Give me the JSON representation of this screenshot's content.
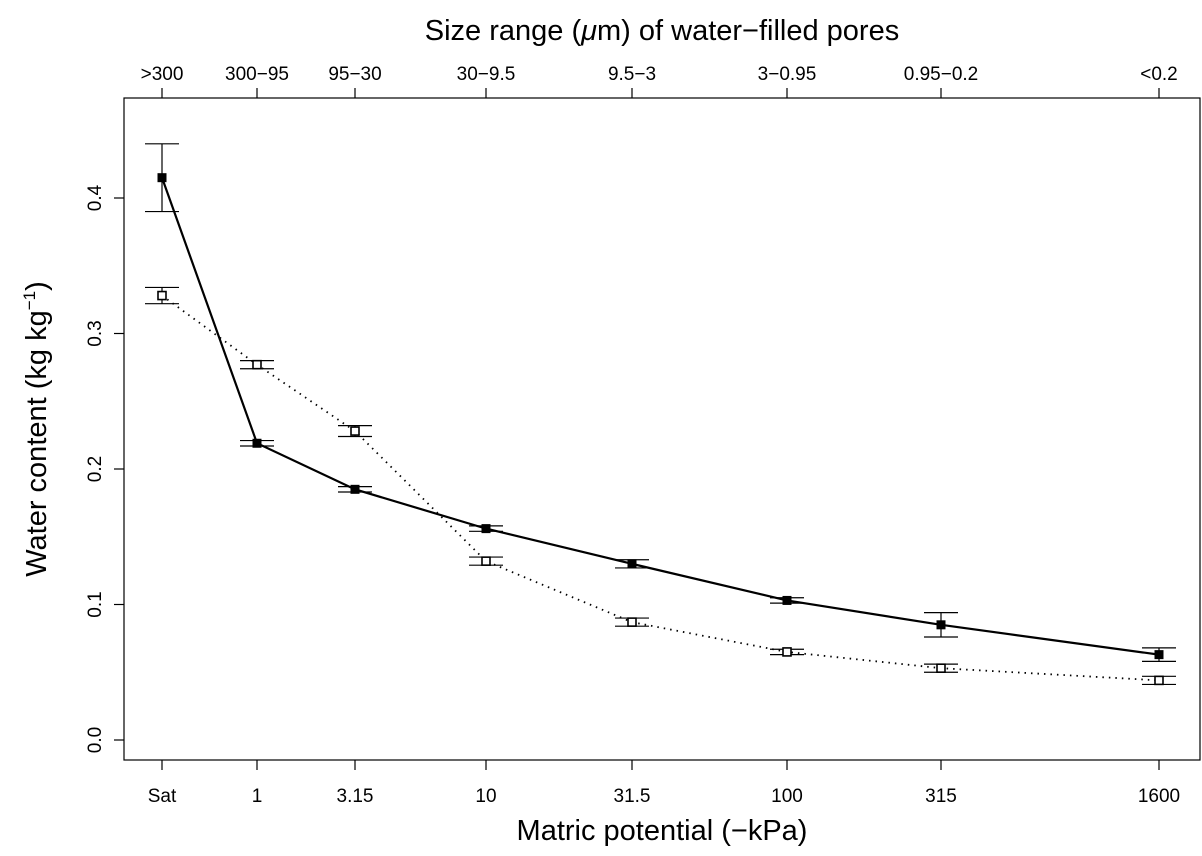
{
  "chart_data": {
    "type": "line",
    "title": "",
    "xlabel": "Matric potential (−kPa)",
    "x2label_parts": {
      "before": "Size range (",
      "mu": "μ",
      "after": "m) of water−filled pores"
    },
    "ylabel_parts": {
      "main": "Water content (kg kg",
      "sup": "−1",
      "close": ")"
    },
    "categories": [
      "Sat",
      "1",
      "3.15",
      "10",
      "31.5",
      "100",
      "315",
      "1600"
    ],
    "top_categories": [
      ">300",
      "300−95",
      "95−30",
      "30−9.5",
      "9.5−3",
      "3−0.95",
      "0.95−0.2",
      "<0.2"
    ],
    "ylim": [
      0,
      0.45
    ],
    "yticks": [
      0.0,
      0.1,
      0.2,
      0.3,
      0.4
    ],
    "ytick_labels": [
      "0.0",
      "0.1",
      "0.2",
      "0.3",
      "0.4"
    ],
    "grid": false,
    "legend": "none",
    "series": [
      {
        "style": "solid",
        "marker": "filled-square",
        "color": "#000000",
        "values": [
          0.415,
          0.219,
          0.185,
          0.156,
          0.13,
          0.103,
          0.085,
          0.063
        ],
        "errors": [
          0.025,
          0.002,
          0.002,
          0.002,
          0.003,
          0.002,
          0.009,
          0.005
        ]
      },
      {
        "style": "dotted",
        "marker": "open-square",
        "color": "#000000",
        "values": [
          0.328,
          0.277,
          0.228,
          0.132,
          0.087,
          0.065,
          0.053,
          0.044
        ],
        "errors": [
          0.006,
          0.003,
          0.004,
          0.003,
          0.003,
          0.002,
          0.003,
          0.003
        ]
      }
    ]
  }
}
